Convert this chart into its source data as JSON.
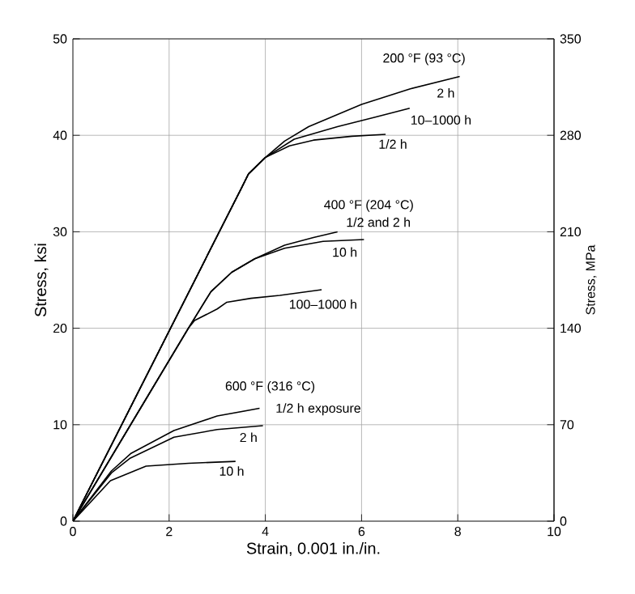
{
  "chart_data": {
    "type": "line",
    "xlabel": "Strain, 0.001 in./in.",
    "ylabel": "Stress, ksi",
    "y2label": "Stress, MPa",
    "xlim": [
      0,
      10
    ],
    "xticks": [
      0,
      2,
      4,
      6,
      8,
      10
    ],
    "ylim": [
      0,
      50
    ],
    "yticks": [
      0,
      10,
      20,
      30,
      40,
      50
    ],
    "y2lim": [
      0,
      350
    ],
    "y2ticks": [
      0,
      70,
      140,
      210,
      280,
      350
    ],
    "grid": true,
    "line_style": "solid",
    "series": [
      {
        "color": "#000000",
        "x": [
          0,
          3.5,
          3.65,
          4.0,
          4.4,
          4.9,
          6.0,
          7.0,
          8.04
        ],
        "values": [
          0,
          34.5,
          36.0,
          37.7,
          39.4,
          40.9,
          43.2,
          44.8,
          46.1
        ]
      },
      {
        "color": "#000000",
        "x": [
          0,
          3.5,
          3.65,
          4.0,
          4.6,
          5.5,
          6.3,
          7.0
        ],
        "values": [
          0,
          34.5,
          36.0,
          37.7,
          39.6,
          40.9,
          41.9,
          42.8
        ]
      },
      {
        "color": "#000000",
        "x": [
          0,
          3.5,
          3.65,
          4.0,
          4.5,
          5.0,
          5.8,
          6.5
        ],
        "values": [
          0,
          34.5,
          36.0,
          37.7,
          38.9,
          39.5,
          39.9,
          40.1
        ]
      },
      {
        "color": "#000000",
        "x": [
          0,
          2.4,
          2.87,
          3.3,
          3.78,
          4.4,
          5.0,
          5.5
        ],
        "values": [
          0,
          20.0,
          23.8,
          25.8,
          27.2,
          28.6,
          29.4,
          30.0
        ]
      },
      {
        "color": "#000000",
        "x": [
          0,
          2.4,
          2.87,
          3.3,
          3.78,
          4.4,
          5.2,
          6.05
        ],
        "values": [
          0,
          20.0,
          23.8,
          25.8,
          27.2,
          28.3,
          29.0,
          29.2
        ]
      },
      {
        "color": "#000000",
        "x": [
          0,
          2.4,
          2.53,
          3.0,
          3.2,
          3.7,
          4.3,
          5.17
        ],
        "values": [
          0,
          20.0,
          20.8,
          22.0,
          22.7,
          23.1,
          23.4,
          24.0
        ]
      },
      {
        "color": "#000000",
        "x": [
          0,
          0.8,
          1.2,
          2.1,
          3.0,
          3.88
        ],
        "values": [
          0,
          5.2,
          7.0,
          9.4,
          10.9,
          11.7
        ]
      },
      {
        "color": "#000000",
        "x": [
          0,
          0.8,
          1.18,
          2.1,
          3.0,
          3.95
        ],
        "values": [
          0,
          5.0,
          6.5,
          8.7,
          9.5,
          9.9
        ]
      },
      {
        "color": "#000000",
        "x": [
          0,
          0.78,
          1.52,
          2.4,
          3.38
        ],
        "values": [
          0,
          4.2,
          5.7,
          6.0,
          6.2
        ]
      }
    ],
    "annotations": [
      "200 °F (93 °C)",
      "2 h",
      "10–1000 h",
      "1/2 h",
      "400 °F (204 °C)",
      "1/2 and 2 h",
      "10 h",
      "100–1000 h",
      "600 °F (316 °C)",
      "1/2 h exposure",
      "2 h",
      "10 h"
    ]
  }
}
